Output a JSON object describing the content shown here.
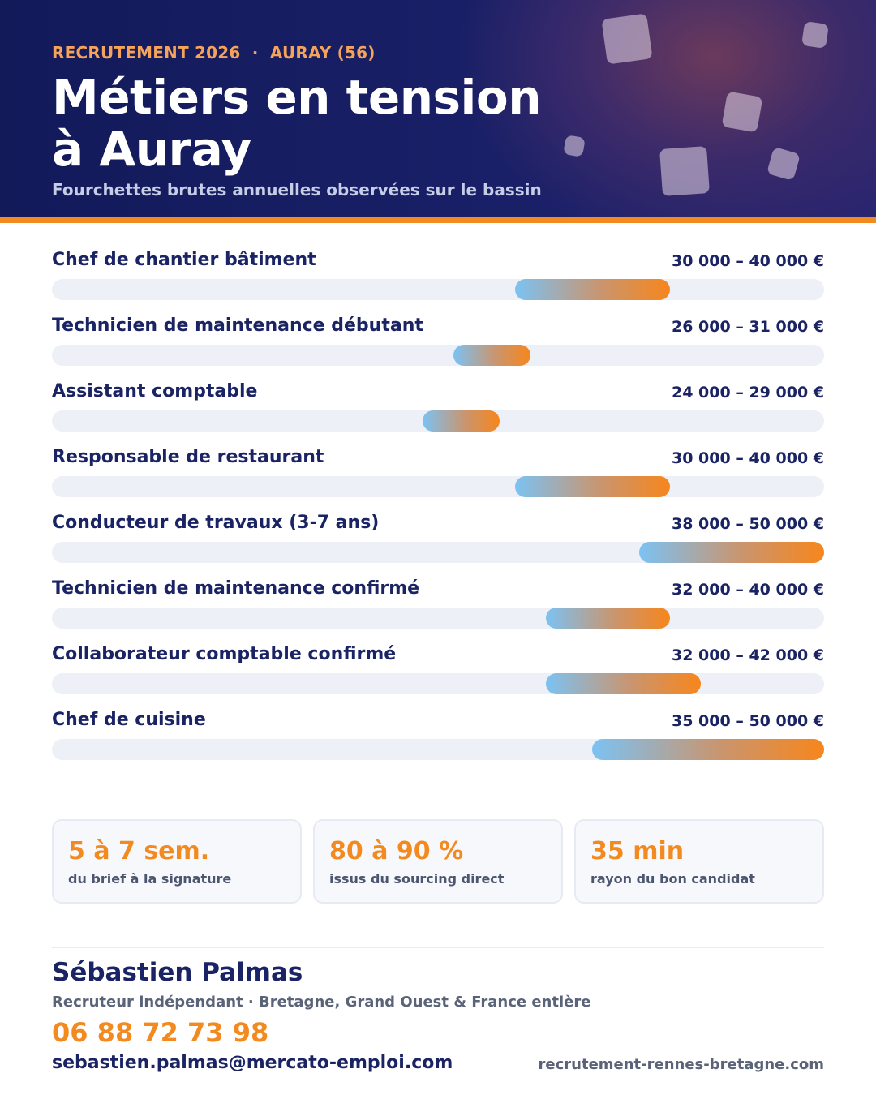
{
  "header": {
    "kicker": "RECRUTEMENT 2026  ·  AURAY (56)",
    "title_line1": "Métiers en tension",
    "title_line2": "à Auray",
    "subtitle": "Fourchettes brutes annuelles observées sur le bassin"
  },
  "chart_data": {
    "type": "bar",
    "title": "Métiers en tension à Auray",
    "subtitle": "Fourchettes brutes annuelles observées sur le bassin",
    "xlim": [
      0,
      50000
    ],
    "rows": [
      {
        "label": "Chef de chantier bâtiment",
        "min": 30000,
        "max": 40000,
        "range_label": "30 000 – 40 000 €"
      },
      {
        "label": "Technicien de maintenance débutant",
        "min": 26000,
        "max": 31000,
        "range_label": "26 000 – 31 000 €"
      },
      {
        "label": "Assistant comptable",
        "min": 24000,
        "max": 29000,
        "range_label": "24 000 – 29 000 €"
      },
      {
        "label": "Responsable de restaurant",
        "min": 30000,
        "max": 40000,
        "range_label": "30 000 – 40 000 €"
      },
      {
        "label": "Conducteur de travaux (3-7 ans)",
        "min": 38000,
        "max": 50000,
        "range_label": "38 000 – 50 000 €"
      },
      {
        "label": "Technicien de maintenance confirmé",
        "min": 32000,
        "max": 40000,
        "range_label": "32 000 – 40 000 €"
      },
      {
        "label": "Collaborateur comptable confirmé",
        "min": 32000,
        "max": 42000,
        "range_label": "32 000 – 42 000 €"
      },
      {
        "label": "Chef de cuisine",
        "min": 35000,
        "max": 50000,
        "range_label": "35 000 – 50 000 €"
      }
    ],
    "colors": {
      "gradient_start": "#7cc2f3",
      "gradient_end": "#f7861c",
      "track": "#eef0f7"
    }
  },
  "stats": [
    {
      "value": "5 à 7 sem.",
      "label": "du brief à la signature"
    },
    {
      "value": "80 à 90 %",
      "label": "issus du sourcing direct"
    },
    {
      "value": "35 min",
      "label": "rayon du bon candidat"
    }
  ],
  "contact": {
    "name": "Sébastien Palmas",
    "role": "Recruteur indépendant · Bretagne, Grand Ouest & France entière",
    "phone": "06 88 72 73 98",
    "email": "sebastien.palmas@mercato-emploi.com",
    "website": "recrutement-rennes-bretagne.com"
  },
  "colors": {
    "accent": "#f28a1f",
    "navy": "#1a2363",
    "header_bg": "#151c5e"
  }
}
